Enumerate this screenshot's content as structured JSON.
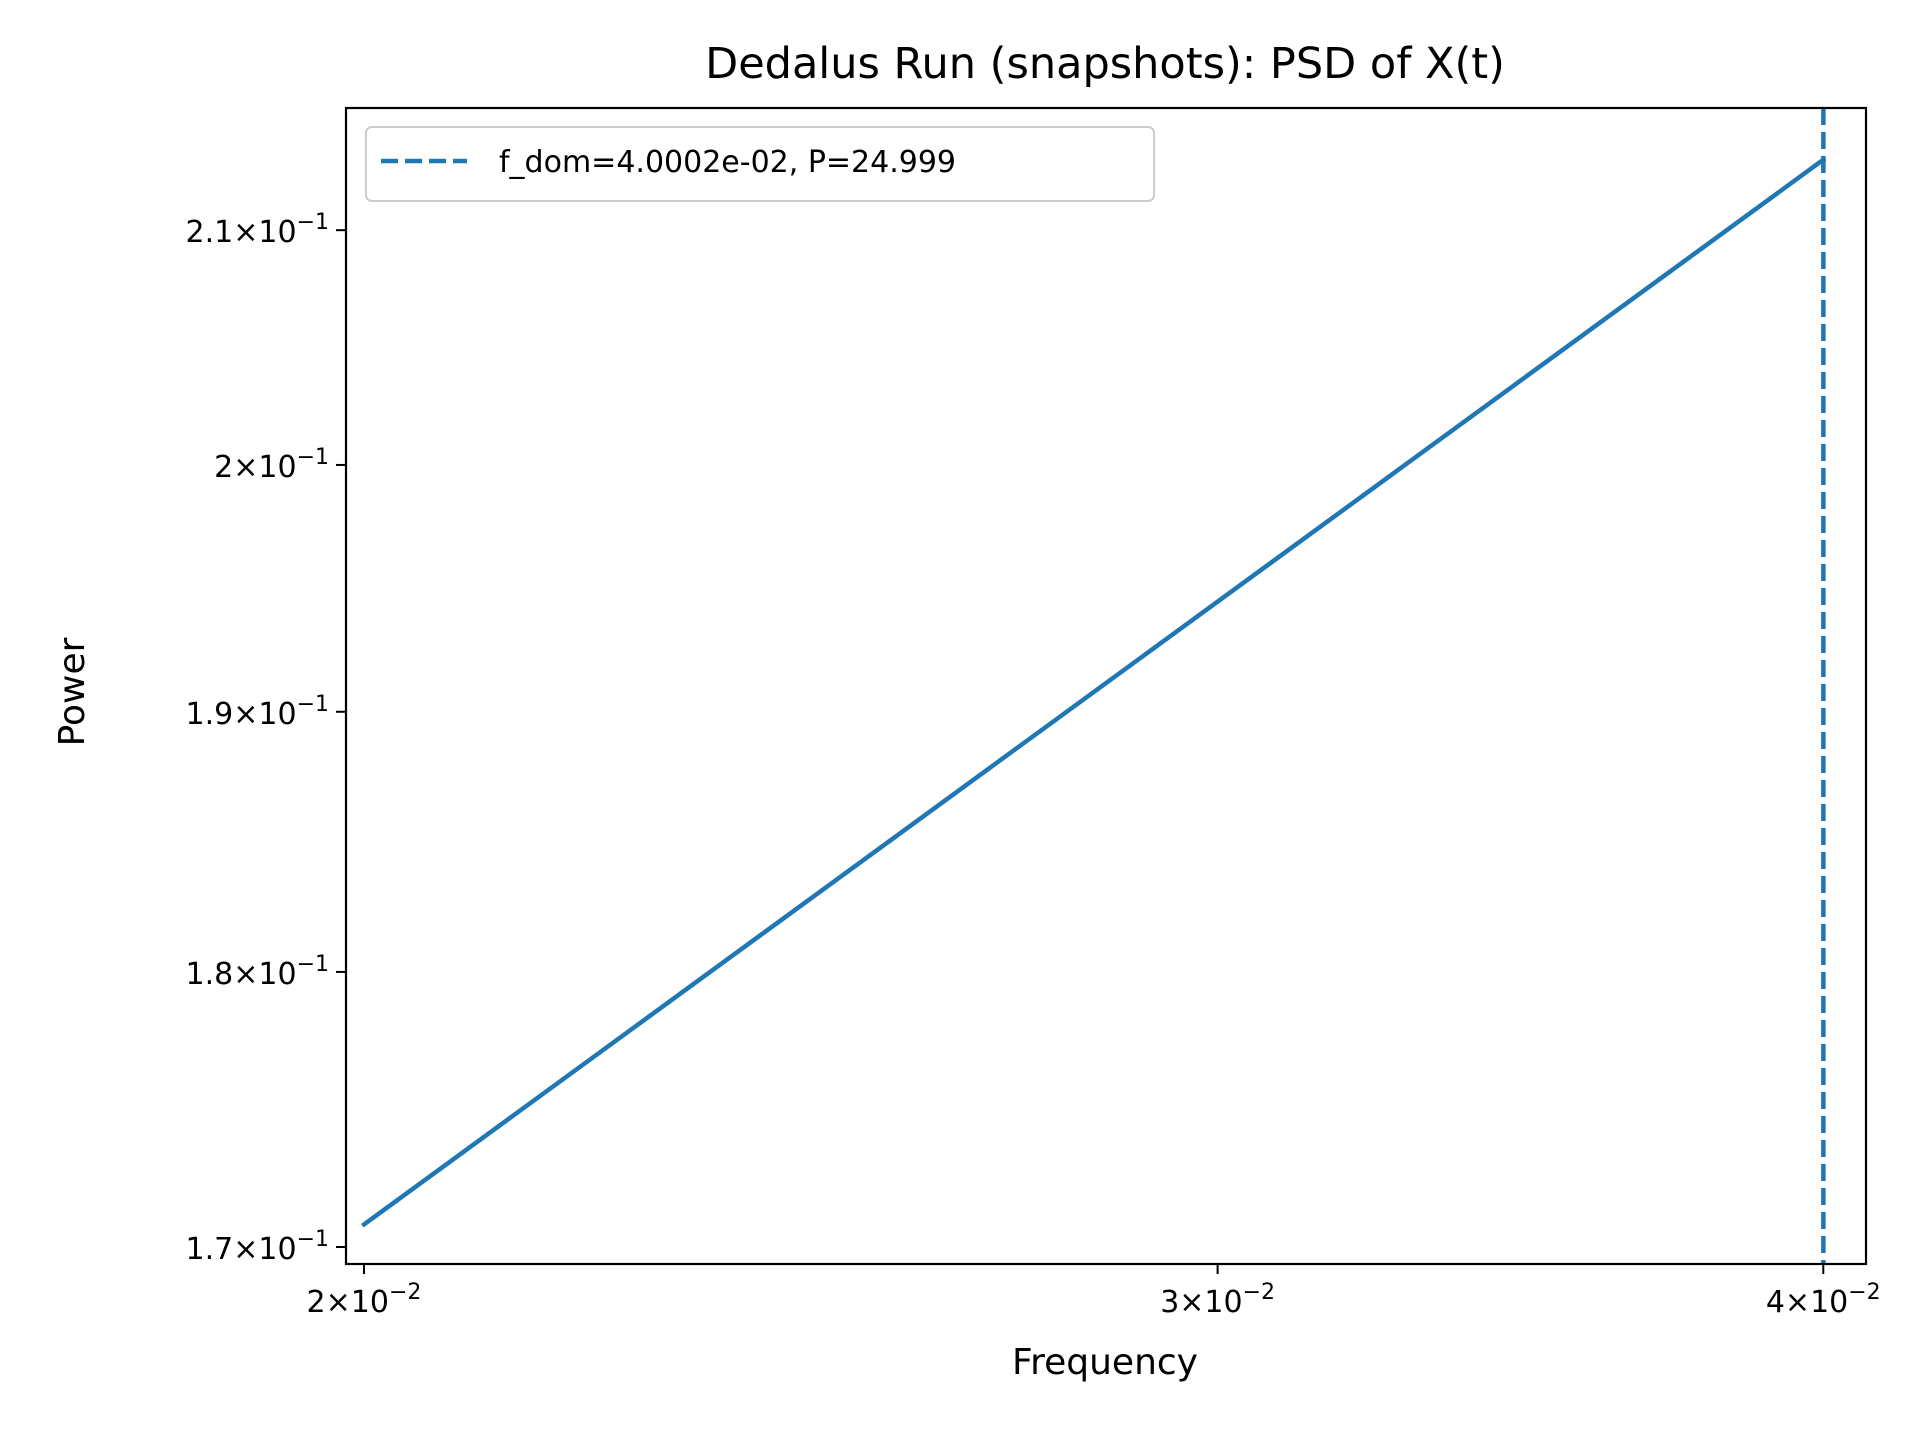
{
  "chart_data": {
    "type": "line",
    "title": "Dedalus Run (snapshots): PSD of X(t)",
    "xlabel": "Frequency",
    "ylabel": "Power",
    "xscale": "log",
    "yscale": "log",
    "xlim": [
      0.01983,
      0.04082
    ],
    "ylim": [
      0.1694,
      0.2154
    ],
    "grid": false,
    "legend_position": "upper-left",
    "series": [
      {
        "x": [
          0.020001,
          0.040002
        ],
        "y": [
          0.1708,
          0.2131
        ],
        "color": "#1f77b4",
        "style": "solid"
      }
    ],
    "vlines": [
      {
        "x": 0.040002,
        "label": "f_dom=4.0002e-02, P=24.999",
        "color": "#1f77b4",
        "style": "dashed"
      }
    ],
    "xticks": [
      {
        "value": 0.02,
        "mantissa": "2",
        "exponent": "−2"
      },
      {
        "value": 0.03,
        "mantissa": "3",
        "exponent": "−2"
      },
      {
        "value": 0.04,
        "mantissa": "4",
        "exponent": "−2"
      }
    ],
    "yticks": [
      {
        "value": 0.17,
        "mantissa": "1.7",
        "exponent": "−1"
      },
      {
        "value": 0.18,
        "mantissa": "1.8",
        "exponent": "−1"
      },
      {
        "value": 0.19,
        "mantissa": "1.9",
        "exponent": "−1"
      },
      {
        "value": 0.2,
        "mantissa": "2",
        "exponent": "−1"
      },
      {
        "value": 0.21,
        "mantissa": "2.1",
        "exponent": "−1"
      }
    ]
  }
}
